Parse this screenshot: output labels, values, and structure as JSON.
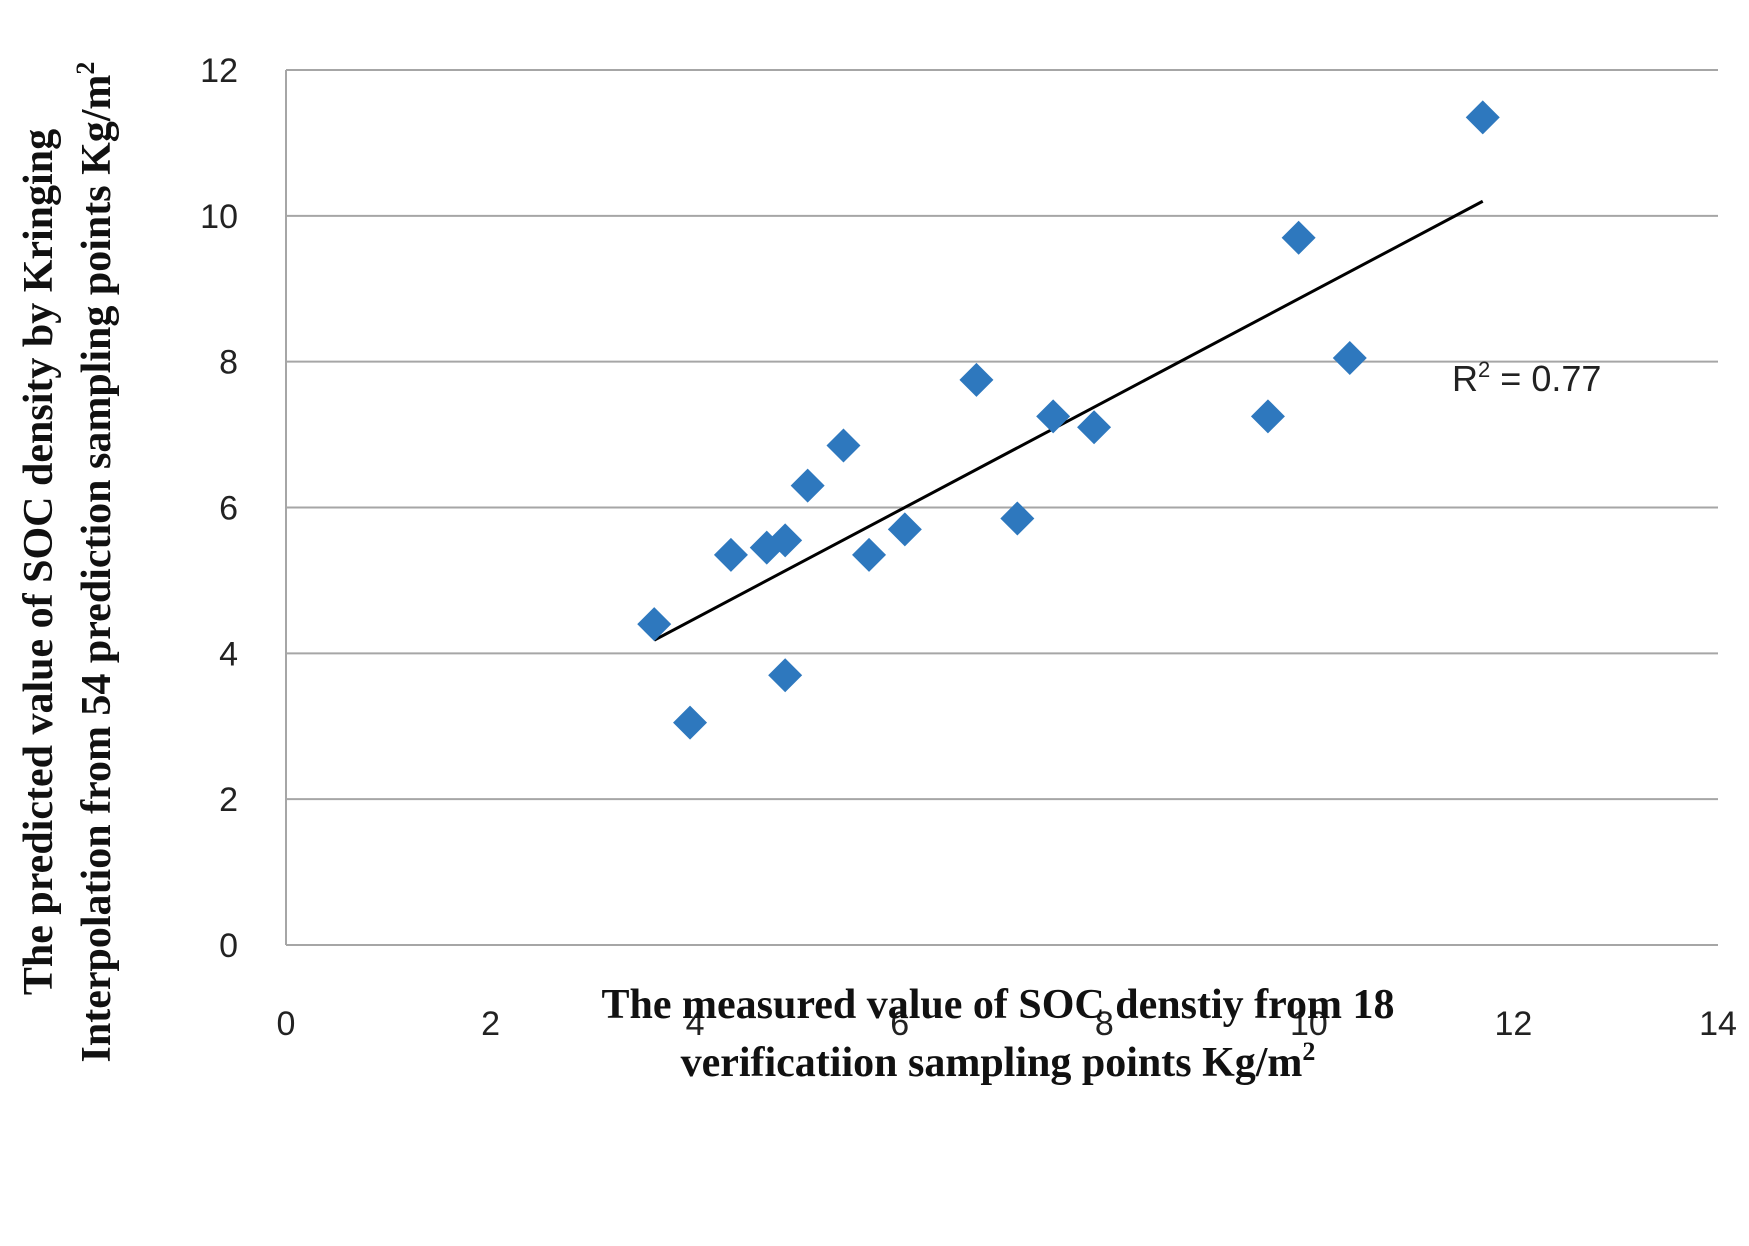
{
  "chart_data": {
    "type": "scatter",
    "title": "",
    "xlabel_lines": [
      "The measured value of SOC denstiy from 18",
      "verificatiion sampling points Kg/m"
    ],
    "xlabel_superscript": "2",
    "ylabel_lines": [
      "The predicted value of SOC density  by Kringing",
      "Interpolation from 54 prediction sampling points Kg/m"
    ],
    "ylabel_superscript": "2",
    "xlim": [
      0,
      14
    ],
    "ylim": [
      0,
      12
    ],
    "xticks": [
      0,
      2,
      4,
      6,
      8,
      10,
      12,
      14
    ],
    "yticks": [
      0,
      2,
      4,
      6,
      8,
      10,
      12
    ],
    "grid": "horizontal",
    "marker": "diamond",
    "marker_color": "#2E78BE",
    "trendline_color": "#000000",
    "grid_color": "#A6A6A6",
    "points": [
      {
        "x": 3.6,
        "y": 4.4
      },
      {
        "x": 3.95,
        "y": 3.05
      },
      {
        "x": 4.35,
        "y": 5.35
      },
      {
        "x": 4.7,
        "y": 5.45
      },
      {
        "x": 4.88,
        "y": 5.55
      },
      {
        "x": 4.88,
        "y": 3.7
      },
      {
        "x": 5.1,
        "y": 6.3
      },
      {
        "x": 5.45,
        "y": 6.85
      },
      {
        "x": 5.7,
        "y": 5.35
      },
      {
        "x": 6.05,
        "y": 5.7
      },
      {
        "x": 6.75,
        "y": 7.75
      },
      {
        "x": 7.15,
        "y": 5.85
      },
      {
        "x": 7.5,
        "y": 7.25
      },
      {
        "x": 7.9,
        "y": 7.1
      },
      {
        "x": 9.6,
        "y": 7.25
      },
      {
        "x": 9.9,
        "y": 9.7
      },
      {
        "x": 10.4,
        "y": 8.05
      },
      {
        "x": 11.7,
        "y": 11.35
      }
    ],
    "trendline": {
      "x_start": 3.6,
      "y_start": 4.18,
      "x_end": 11.7,
      "y_end": 10.2
    },
    "annotation": {
      "text_base": "R",
      "superscript": "2",
      "text_rest": " = 0.77",
      "anchor_x": 11.4,
      "anchor_y": 7.6
    }
  }
}
